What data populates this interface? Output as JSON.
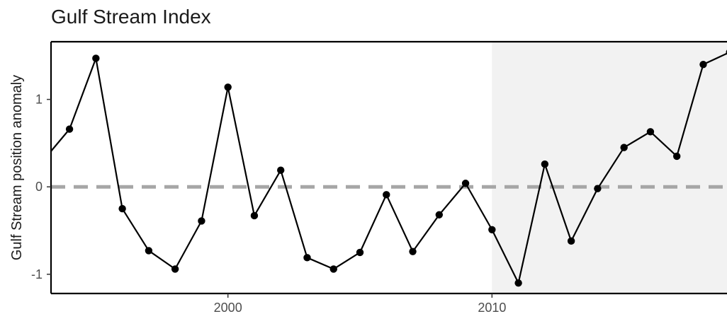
{
  "chart_data": {
    "type": "line",
    "title": "Gulf Stream Index",
    "xlabel": "",
    "ylabel": "Gulf Stream position anomaly",
    "xlim": [
      1993.3,
      2018.9
    ],
    "ylim": [
      -1.22,
      1.66
    ],
    "x_ticks": [
      2000,
      2010
    ],
    "x_tick_labels": [
      "2000",
      "2010"
    ],
    "y_ticks": [
      -1,
      0,
      1
    ],
    "y_tick_labels": [
      "-1",
      "0",
      "1"
    ],
    "reference_line": {
      "y": 0,
      "style": "dashed",
      "color": "#a6a6a6"
    },
    "shaded_region": {
      "x_start": 2010,
      "x_end": 2018.9,
      "color": "#f2f2f2"
    },
    "grid": false,
    "series": [
      {
        "x": [
          1993,
          1994,
          1995,
          1996,
          1997,
          1998,
          1999,
          2000,
          2001,
          2002,
          2003,
          2004,
          2005,
          2006,
          2007,
          2008,
          2009,
          2010,
          2011,
          2012,
          2013,
          2014,
          2015,
          2016,
          2017,
          2018,
          2019
        ],
        "y": [
          0.3,
          0.66,
          1.47,
          -0.25,
          -0.73,
          -0.94,
          -0.39,
          1.14,
          -0.33,
          0.19,
          -0.81,
          -0.94,
          -0.75,
          -0.09,
          -0.74,
          -0.32,
          0.04,
          -0.49,
          -1.1,
          0.26,
          -0.62,
          -0.02,
          0.45,
          0.63,
          0.35,
          1.4,
          1.54
        ],
        "color": "#000000"
      }
    ]
  }
}
